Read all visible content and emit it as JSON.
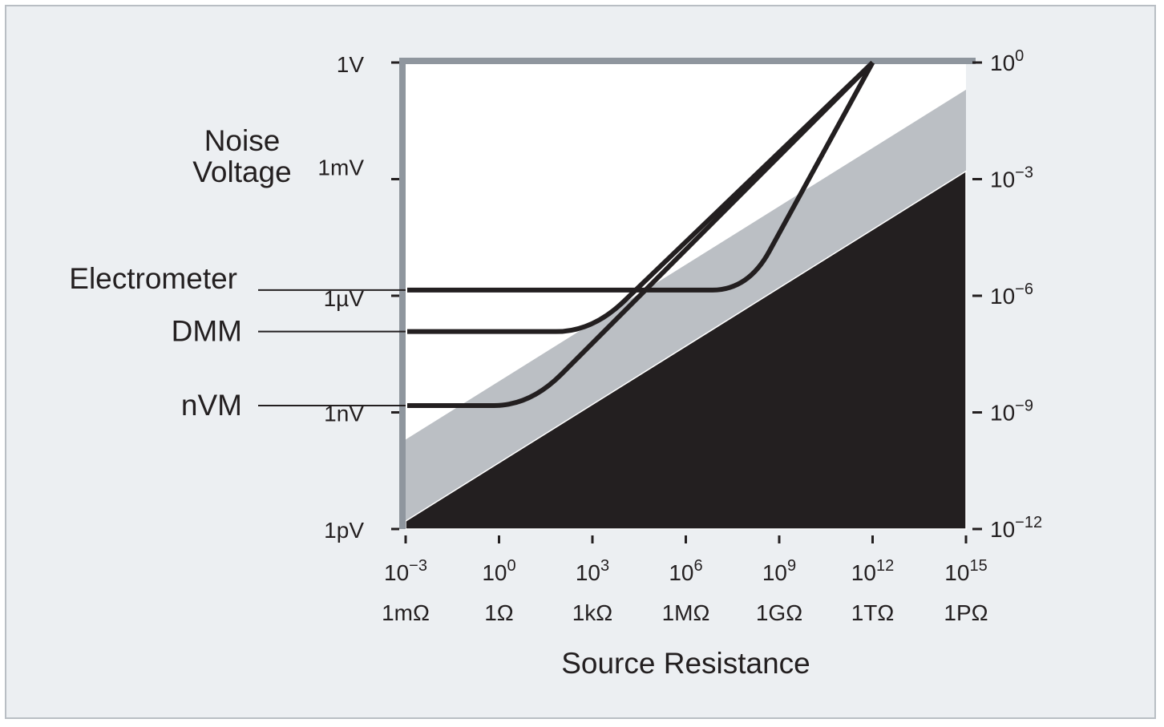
{
  "chart_data": {
    "type": "line",
    "xlabel": "Source Resistance",
    "ylabel": [
      "Noise",
      "Voltage"
    ],
    "x_scale": "log",
    "y_scale": "log",
    "xlim": [
      0.001,
      1000000000000000.0
    ],
    "ylim": [
      1e-12,
      1
    ],
    "x_ticks": [
      {
        "value": 0.001,
        "base": "10",
        "exp": "−3",
        "unit": "1mΩ"
      },
      {
        "value": 1,
        "base": "10",
        "exp": "0",
        "unit": "1Ω"
      },
      {
        "value": 1000,
        "base": "10",
        "exp": "3",
        "unit": "1kΩ"
      },
      {
        "value": 1000000.0,
        "base": "10",
        "exp": "6",
        "unit": "1MΩ"
      },
      {
        "value": 1000000000.0,
        "base": "10",
        "exp": "9",
        "unit": "1GΩ"
      },
      {
        "value": 1000000000000.0,
        "base": "10",
        "exp": "12",
        "unit": "1TΩ"
      },
      {
        "value": 1000000000000000.0,
        "base": "10",
        "exp": "15",
        "unit": "1PΩ"
      }
    ],
    "y_ticks_left": [
      {
        "value": 1,
        "label": "1V"
      },
      {
        "value": 0.001,
        "label": "1mV"
      },
      {
        "value": 1e-06,
        "label": "1µV"
      },
      {
        "value": 1e-09,
        "label": "1nV"
      },
      {
        "value": 1e-12,
        "label": "1pV"
      }
    ],
    "y_ticks_right": [
      {
        "value": 1,
        "base": "10",
        "exp": "0"
      },
      {
        "value": 0.001,
        "base": "10",
        "exp": "−3"
      },
      {
        "value": 1e-06,
        "base": "10",
        "exp": "−6"
      },
      {
        "value": 1e-09,
        "base": "10",
        "exp": "−9"
      },
      {
        "value": 1e-12,
        "base": "10",
        "exp": "−12"
      }
    ],
    "regions": [
      {
        "id": "gray-band",
        "color": "#bbbfc4",
        "upper_left": 2e-10,
        "upper_right": 0.2,
        "lower_left": 1.6e-12,
        "lower_right": 0.0016
      },
      {
        "id": "black-region",
        "color": "#231f20",
        "upper_left": 1.6e-12,
        "upper_right": 0.0016
      }
    ],
    "series": [
      {
        "name": "Electrometer",
        "floor": 1.4e-06,
        "knee": 100000000.0,
        "end": [
          1000000000000.0,
          1
        ]
      },
      {
        "name": "DMM",
        "floor": 1.2e-07,
        "knee": 1000,
        "end": [
          1000000000000.0,
          1
        ]
      },
      {
        "name": "nVM",
        "floor": 1.5e-09,
        "knee": 10,
        "end": [
          1000000000000.0,
          1
        ]
      }
    ],
    "colors": {
      "line": "#231f20",
      "axis_bar": "#8f969e",
      "background": "#eceff2",
      "plot_area": "#ffffff"
    }
  }
}
